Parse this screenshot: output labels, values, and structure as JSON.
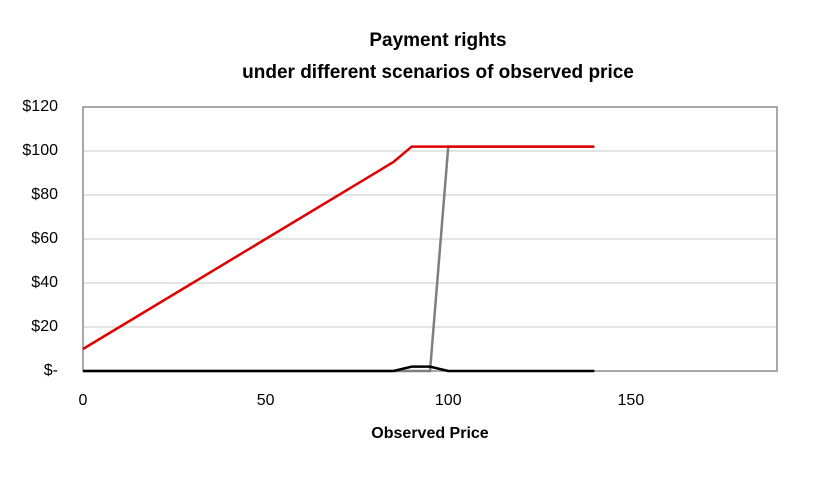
{
  "chart_data": {
    "type": "line",
    "title": "Payment rights",
    "subtitle": "under different scenarios of observed price",
    "x_label": "Observed Price",
    "xlim": [
      0,
      190
    ],
    "xticks": [
      0,
      50,
      100,
      150
    ],
    "ylim": [
      0,
      120
    ],
    "yticks": [
      {
        "value": 0,
        "label": "$-"
      },
      {
        "value": 20,
        "label": "$20"
      },
      {
        "value": 40,
        "label": "$40"
      },
      {
        "value": 60,
        "label": "$60"
      },
      {
        "value": 80,
        "label": "$80"
      },
      {
        "value": 100,
        "label": "$100"
      },
      {
        "value": 120,
        "label": "$120"
      }
    ],
    "grid": true,
    "series": [
      {
        "color": "#7f7f7f",
        "x": [
          0,
          95,
          100,
          140
        ],
        "values": [
          0,
          0,
          102,
          102
        ]
      },
      {
        "color": "#000000",
        "x": [
          0,
          85,
          90,
          95,
          100,
          140
        ],
        "values": [
          0,
          0,
          2,
          2,
          0,
          0
        ]
      },
      {
        "color": "#e00000",
        "x": [
          0,
          85,
          90,
          140
        ],
        "values": [
          10,
          95,
          102,
          102
        ]
      }
    ]
  }
}
